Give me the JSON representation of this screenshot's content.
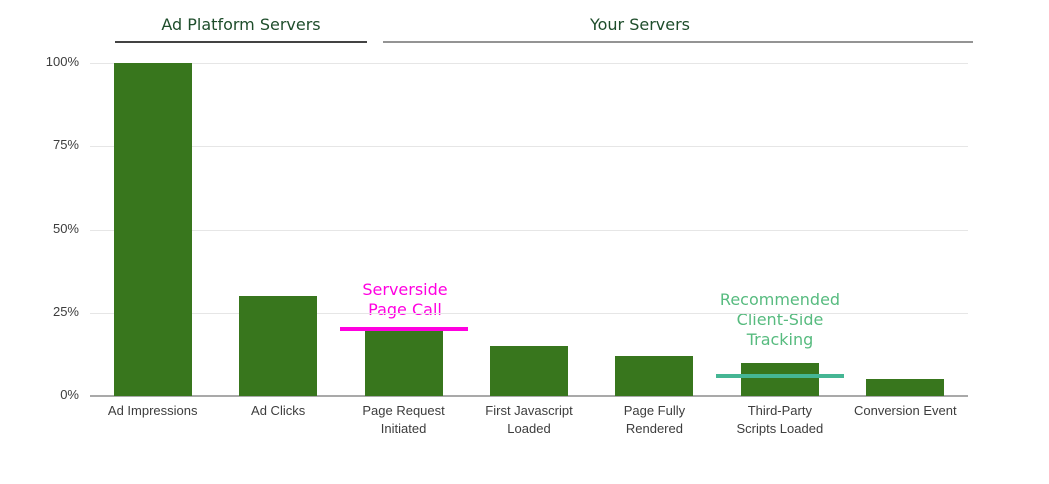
{
  "chart_data": {
    "type": "bar",
    "title": "",
    "categories": [
      "Ad Impressions",
      "Ad Clicks",
      "Page Request\nInitiated",
      "First Javascript\nLoaded",
      "Page Fully\nRendered",
      "Third-Party\nScripts Loaded",
      "Conversion Event"
    ],
    "values": [
      100,
      30,
      20,
      15,
      12,
      10,
      5
    ],
    "unit": "%",
    "ylim": [
      0,
      100
    ],
    "y_ticks": [
      {
        "label": "0%",
        "value": 0
      },
      {
        "label": "25%",
        "value": 25
      },
      {
        "label": "50%",
        "value": 50
      },
      {
        "label": "75%",
        "value": 75
      },
      {
        "label": "100%",
        "value": 100
      }
    ],
    "grid": true,
    "legend": "none",
    "bar_color": "#38761d"
  },
  "groups": [
    {
      "label": "Ad Platform Servers",
      "bars": [
        "Ad Impressions",
        "Ad Clicks"
      ],
      "rule_color": "#434343"
    },
    {
      "label": "Your Servers",
      "bars": [
        "Page Request Initiated",
        "First Javascript Loaded",
        "Page Fully Rendered",
        "Third-Party Scripts Loaded",
        "Conversion Event"
      ],
      "rule_color": "#949494"
    }
  ],
  "annotations": [
    {
      "text": "Serverside\nPage Call",
      "color": "#ff00e0",
      "line_color": "#ff00e0",
      "bar_index": 2,
      "value": 20
    },
    {
      "text": "Recommended\nClient-Side\nTracking",
      "color": "#57bb7f",
      "line_color": "#45b694",
      "bar_index": 5,
      "value": 6
    }
  ],
  "colors": {
    "bar": "#38761d",
    "header_text": "#1e4d2b",
    "grid": "#e6e6e6",
    "axis": "#a9a9a9",
    "axis_text": "#3d3d3d"
  }
}
